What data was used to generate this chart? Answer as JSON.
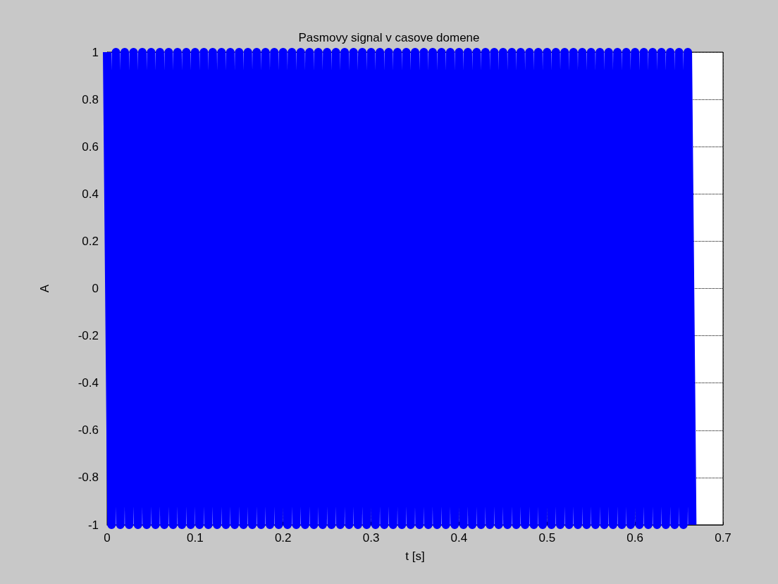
{
  "chart_data": {
    "type": "line",
    "title": "Pasmovy signal v casove domene",
    "xlabel": "t [s]",
    "ylabel": "A",
    "x": [
      0,
      0.005,
      0.01,
      0.015,
      0.02,
      0.025,
      0.03,
      0.035,
      0.04,
      0.045,
      0.05,
      0.055,
      0.06,
      0.065,
      0.07,
      0.075,
      0.08,
      0.085,
      0.09,
      0.095,
      0.1,
      0.105,
      0.11,
      0.115,
      0.12,
      0.125,
      0.13,
      0.135,
      0.14,
      0.145,
      0.15,
      0.155,
      0.16,
      0.165,
      0.17,
      0.175,
      0.18,
      0.185,
      0.19,
      0.195,
      0.2,
      0.205,
      0.21,
      0.215,
      0.22,
      0.225,
      0.23,
      0.235,
      0.24,
      0.245,
      0.25,
      0.255,
      0.26,
      0.265,
      0.27,
      0.275,
      0.28,
      0.285,
      0.29,
      0.295,
      0.3,
      0.305,
      0.31,
      0.315,
      0.32,
      0.325,
      0.33,
      0.335,
      0.34,
      0.345,
      0.35,
      0.355,
      0.36,
      0.365,
      0.37,
      0.375,
      0.38,
      0.385,
      0.39,
      0.395,
      0.4,
      0.405,
      0.41,
      0.415,
      0.42,
      0.425,
      0.43,
      0.435,
      0.44,
      0.445,
      0.45,
      0.455,
      0.46,
      0.465,
      0.47,
      0.475,
      0.48,
      0.485,
      0.49,
      0.495,
      0.5,
      0.505,
      0.51,
      0.515,
      0.52,
      0.525,
      0.53,
      0.535,
      0.54,
      0.545,
      0.55,
      0.555,
      0.56,
      0.565,
      0.57,
      0.575,
      0.58,
      0.585,
      0.59,
      0.595,
      0.6,
      0.605,
      0.61,
      0.615,
      0.62,
      0.625,
      0.63,
      0.635,
      0.64,
      0.645,
      0.65,
      0.655,
      0.66,
      0.665
    ],
    "series": [
      {
        "color": "#0000ff",
        "values": [
          1,
          -1,
          1,
          -1,
          1,
          -1,
          1,
          -1,
          1,
          -1,
          1,
          -1,
          1,
          -1,
          1,
          -1,
          1,
          -1,
          1,
          -1,
          1,
          -1,
          1,
          -1,
          1,
          -1,
          1,
          -1,
          1,
          -1,
          1,
          -1,
          1,
          -1,
          1,
          -1,
          1,
          -1,
          1,
          -1,
          1,
          -1,
          1,
          -1,
          1,
          -1,
          1,
          -1,
          1,
          -1,
          1,
          -1,
          1,
          -1,
          1,
          -1,
          1,
          -1,
          1,
          -1,
          1,
          -1,
          1,
          -1,
          1,
          -1,
          1,
          -1,
          1,
          -1,
          1,
          -1,
          1,
          -1,
          1,
          -1,
          1,
          -1,
          1,
          -1,
          1,
          -1,
          1,
          -1,
          1,
          -1,
          1,
          -1,
          1,
          -1,
          1,
          -1,
          1,
          -1,
          1,
          -1,
          1,
          -1,
          1,
          -1,
          1,
          -1,
          1,
          -1,
          1,
          -1,
          1,
          -1,
          1,
          -1,
          1,
          -1,
          1,
          -1,
          1,
          -1,
          1,
          -1,
          1,
          -1,
          1,
          -1,
          1,
          -1,
          1,
          -1,
          1,
          -1,
          1,
          -1,
          1,
          -1,
          1,
          -1
        ]
      }
    ],
    "xlim": [
      0,
      0.7
    ],
    "xticks": [
      0,
      0.1,
      0.2,
      0.3,
      0.4,
      0.5,
      0.6,
      0.7
    ],
    "ylim": [
      -1,
      1
    ],
    "yticks": [
      -1,
      -0.8,
      -0.6,
      -0.4,
      -0.2,
      0,
      0.2,
      0.4,
      0.6,
      0.8,
      1
    ],
    "grid": true,
    "marker": "none",
    "line_style": "solid"
  }
}
